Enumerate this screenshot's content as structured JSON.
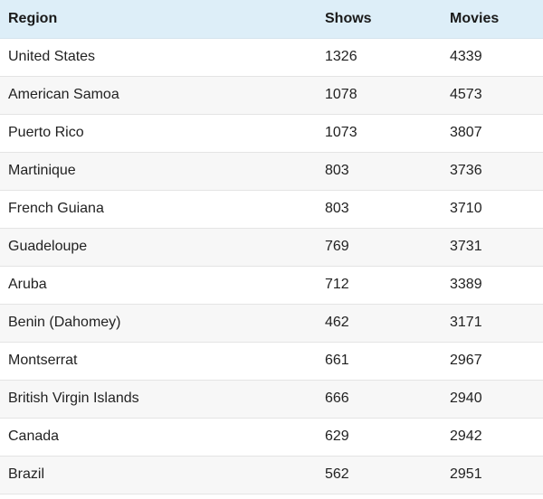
{
  "table": {
    "headers": [
      "Region",
      "Shows",
      "Movies"
    ],
    "rows": [
      [
        "United States",
        "1326",
        "4339"
      ],
      [
        "American Samoa",
        "1078",
        "4573"
      ],
      [
        "Puerto Rico",
        "1073",
        "3807"
      ],
      [
        "Martinique",
        "803",
        "3736"
      ],
      [
        "French Guiana",
        "803",
        "3710"
      ],
      [
        "Guadeloupe",
        "769",
        "3731"
      ],
      [
        "Aruba",
        "712",
        "3389"
      ],
      [
        "Benin (Dahomey)",
        "462",
        "3171"
      ],
      [
        "Montserrat",
        "661",
        "2967"
      ],
      [
        "British Virgin Islands",
        "666",
        "2940"
      ],
      [
        "Canada",
        "629",
        "2942"
      ],
      [
        "Brazil",
        "562",
        "2951"
      ]
    ]
  },
  "colors": {
    "header_background": "#ddeef8",
    "row_alt_background": "#f7f7f7",
    "row_divider": "#e4e4e4"
  }
}
